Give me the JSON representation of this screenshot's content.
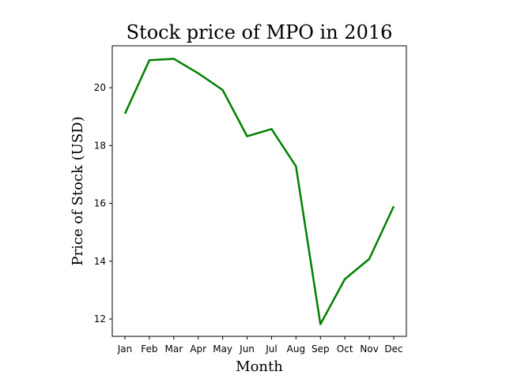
{
  "chart_data": {
    "type": "line",
    "title": "Stock price of MPO in 2016",
    "xlabel": "Month",
    "ylabel": "Price of Stock (USD)",
    "categories": [
      "Jan",
      "Feb",
      "Mar",
      "Apr",
      "May",
      "Jun",
      "Jul",
      "Aug",
      "Sep",
      "Oct",
      "Nov",
      "Dec"
    ],
    "series": [
      {
        "values": [
          19.1,
          20.95,
          21.0,
          20.5,
          19.92,
          18.32,
          18.57,
          17.28,
          11.82,
          13.38,
          14.08,
          15.9
        ]
      }
    ],
    "yticks": [
      12,
      14,
      16,
      18,
      20
    ],
    "ylim": [
      11.4,
      21.45
    ],
    "grid": false,
    "colors": {
      "line": "#008000",
      "axes": "#000000",
      "background": "#ffffff"
    }
  }
}
